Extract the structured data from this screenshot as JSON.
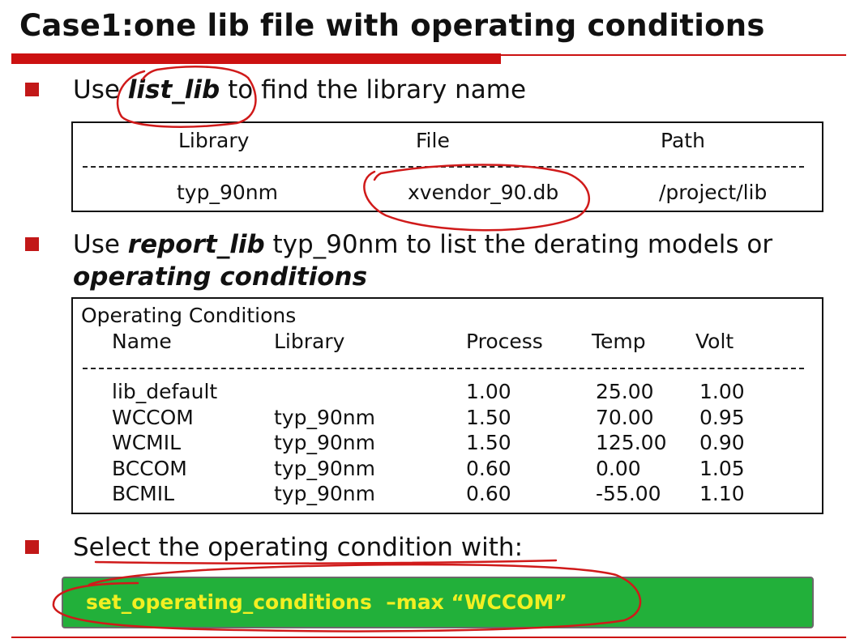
{
  "slide": {
    "title": "Case1:one lib file with operating conditions",
    "bullets": [
      {
        "pre": "Use ",
        "emph": "list_lib",
        "post": " to find the library name"
      },
      {
        "pre": "Use ",
        "emph": "report_lib",
        "post": " typ_90nm to list the derating models or",
        "line2": "operating conditions"
      },
      {
        "text": "Select the operating condition with:"
      }
    ],
    "lib_table": {
      "headers": [
        "Library",
        "File",
        "Path"
      ],
      "row": [
        "typ_90nm",
        "xvendor_90.db",
        "/project/lib"
      ]
    },
    "oc_table": {
      "caption": "Operating Conditions",
      "headers": [
        "Name",
        "Library",
        "Process",
        "Temp",
        "Volt"
      ],
      "rows": [
        [
          "lib_default",
          "",
          "1.00",
          "25.00",
          "1.00"
        ],
        [
          "WCCOM",
          "typ_90nm",
          "1.50",
          "70.00",
          "0.95"
        ],
        [
          "WCMIL",
          "typ_90nm",
          "1.50",
          "125.00",
          "0.90"
        ],
        [
          "BCCOM",
          "typ_90nm",
          "0.60",
          "0.00",
          "1.05"
        ],
        [
          "BCMIL",
          "typ_90nm",
          "0.60",
          "-55.00",
          "1.10"
        ]
      ]
    },
    "command": "set_operating_conditions  –max “WCCOM”"
  },
  "colors": {
    "accent_red": "#cc1111",
    "bullet_red": "#c21818",
    "command_bg": "#22b03a",
    "command_text": "#f2ef22",
    "annotation_ink": "#d01a1a"
  }
}
